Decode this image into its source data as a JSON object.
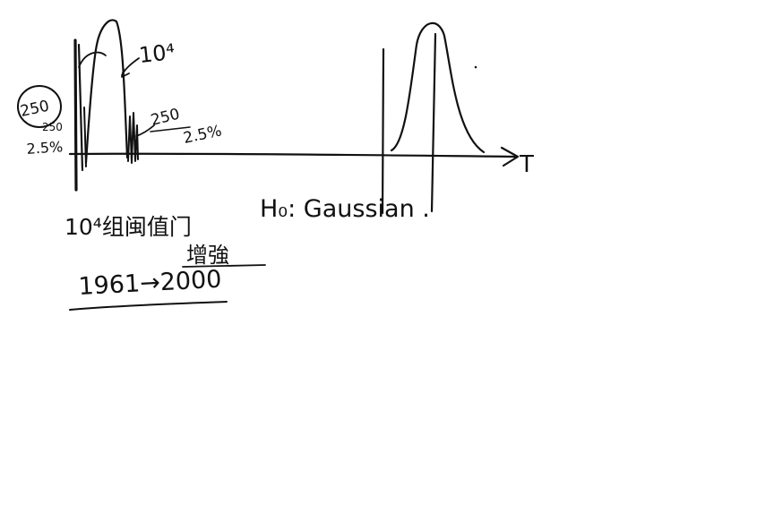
{
  "canvas": {
    "background": "#ffffff",
    "ink_color": "#111111"
  },
  "annotations": {
    "count_top": "10⁴",
    "circled_left": "250",
    "left_small": "250",
    "left_pct": "2.5%",
    "right_count": "250",
    "right_pct": "2.5%",
    "axis_label": "T",
    "hypothesis": "H₀: Gaussian .",
    "note_line1": "10⁴组闽值门",
    "note_line2": "增強",
    "years": "1961→2000"
  }
}
